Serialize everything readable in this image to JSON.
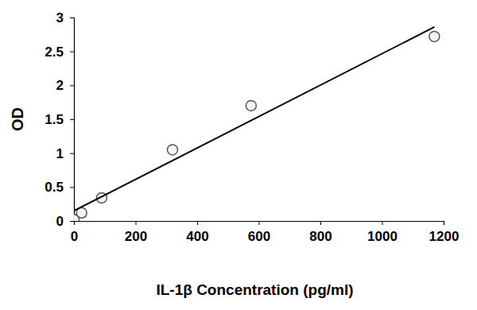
{
  "chart_data": {
    "type": "scatter",
    "x_label": "IL-1β Concentration (pg/ml)",
    "y_label": "OD",
    "series": [
      {
        "type": "scatter",
        "marker": "circle",
        "color": "#555555",
        "x": [
          0,
          25,
          90,
          320,
          575,
          1170
        ],
        "values": [
          0.02,
          0.12,
          0.34,
          1.05,
          1.7,
          2.72
        ]
      },
      {
        "type": "line",
        "line_style": "solid",
        "color": "#000000",
        "x": [
          0,
          1170
        ],
        "values": [
          0.15,
          2.86
        ]
      }
    ],
    "xlim": [
      0,
      1200
    ],
    "xticks": [
      0,
      200,
      400,
      600,
      800,
      1000,
      1200
    ],
    "ylim": [
      0,
      3
    ],
    "yticks": [
      0,
      0.5,
      1,
      1.5,
      2,
      2.5,
      3
    ],
    "grid": false
  }
}
